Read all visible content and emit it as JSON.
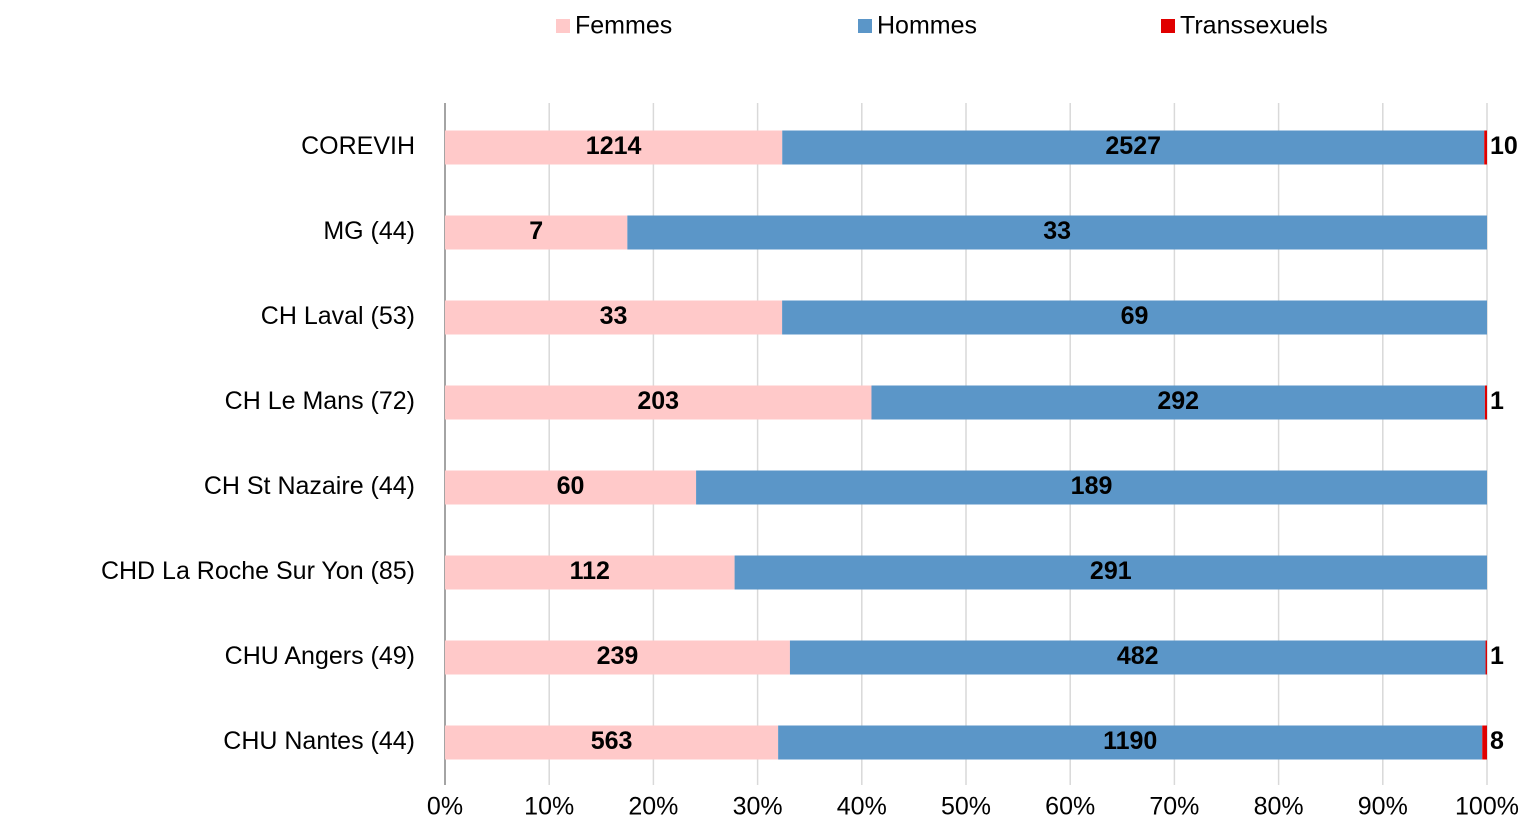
{
  "chart_data": {
    "type": "bar",
    "orientation": "horizontal",
    "stacking": "percent",
    "categories": [
      "COREVIH",
      "MG (44)",
      "CH Laval (53)",
      "CH Le Mans (72)",
      "CH St Nazaire (44)",
      "CHD La Roche Sur Yon (85)",
      "CHU Angers (49)",
      "CHU Nantes (44)"
    ],
    "category_colors": [
      "#c00000",
      "#000000",
      "#000000",
      "#000000",
      "#000000",
      "#000000",
      "#000000",
      "#000000"
    ],
    "series": [
      {
        "name": "Femmes",
        "color": "#ffc9c9",
        "label_color": "#000000",
        "values": [
          1214,
          7,
          33,
          203,
          60,
          112,
          239,
          563
        ]
      },
      {
        "name": "Hommes",
        "color": "#5b96c8",
        "label_color": "#ffffff",
        "values": [
          2527,
          33,
          69,
          292,
          189,
          291,
          482,
          1190
        ]
      },
      {
        "name": "Transsexuels",
        "color": "#e00000",
        "label_color": "#000000",
        "label_position": "outside",
        "values": [
          10,
          0,
          0,
          1,
          0,
          0,
          1,
          8
        ]
      }
    ],
    "xlim": [
      0,
      100
    ],
    "xticks": [
      {
        "value": 0,
        "label": "0%"
      },
      {
        "value": 10,
        "label": "10%"
      },
      {
        "value": 20,
        "label": "20%"
      },
      {
        "value": 30,
        "label": "30%"
      },
      {
        "value": 40,
        "label": "40%"
      },
      {
        "value": 50,
        "label": "50%"
      },
      {
        "value": 60,
        "label": "60%"
      },
      {
        "value": 70,
        "label": "70%"
      },
      {
        "value": 80,
        "label": "80%"
      },
      {
        "value": 90,
        "label": "90%"
      },
      {
        "value": 100,
        "label": "100%"
      }
    ],
    "grid": true,
    "legend": "top"
  }
}
